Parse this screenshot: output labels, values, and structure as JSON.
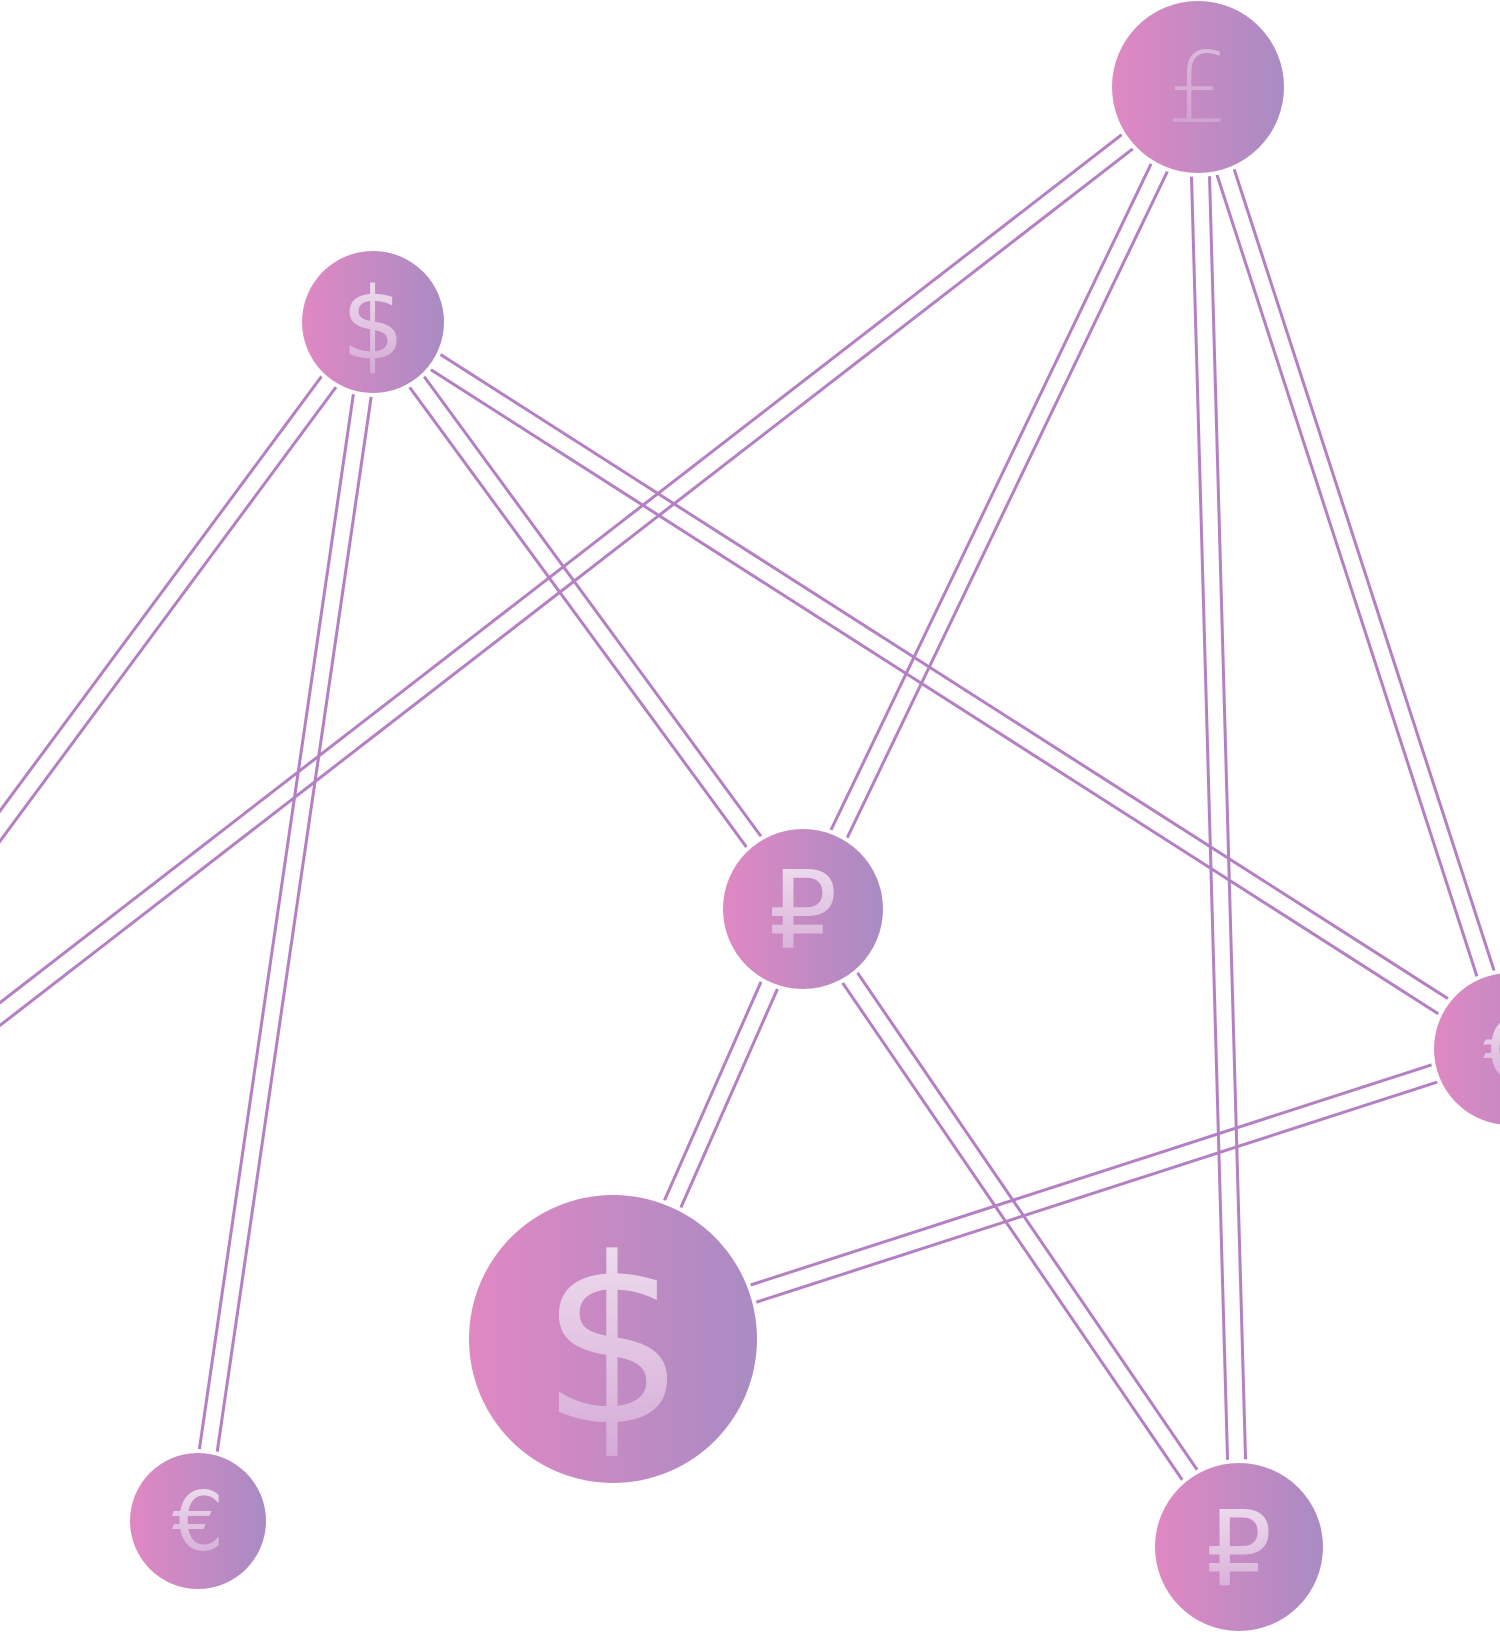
{
  "diagram": {
    "type": "currency-network",
    "colors": {
      "edge": "#b47fc3",
      "node_gradient_start": "#e088c3",
      "node_gradient_end": "#a98bc3",
      "symbol_light": "#f4e9f4",
      "symbol_dark": "#d5a8d6",
      "background": "#ffffff"
    },
    "nodes": [
      {
        "id": "pound-top",
        "symbol": "£",
        "currency": "pound",
        "icon": "pound-icon"
      },
      {
        "id": "dollar-upper-left",
        "symbol": "$",
        "currency": "dollar",
        "icon": "dollar-icon"
      },
      {
        "id": "ruble-center",
        "symbol": "₽",
        "currency": "ruble",
        "icon": "ruble-icon"
      },
      {
        "id": "dollar-large",
        "symbol": "$",
        "currency": "dollar",
        "icon": "dollar-icon"
      },
      {
        "id": "euro-bottom-left",
        "symbol": "€",
        "currency": "euro",
        "icon": "euro-icon"
      },
      {
        "id": "ruble-bottom-right",
        "symbol": "₽",
        "currency": "ruble",
        "icon": "ruble-icon"
      },
      {
        "id": "euro-right-edge",
        "symbol": "€",
        "currency": "euro",
        "icon": "euro-icon"
      }
    ],
    "edges": [
      {
        "from": "dollar-upper-left",
        "to": "offscreen-left-upper"
      },
      {
        "from": "dollar-upper-left",
        "to": "euro-bottom-left"
      },
      {
        "from": "dollar-upper-left",
        "to": "ruble-center"
      },
      {
        "from": "dollar-upper-left",
        "to": "euro-right-edge"
      },
      {
        "from": "pound-top",
        "to": "offscreen-left-lower"
      },
      {
        "from": "pound-top",
        "to": "ruble-center"
      },
      {
        "from": "pound-top",
        "to": "ruble-bottom-right"
      },
      {
        "from": "pound-top",
        "to": "euro-right-edge"
      },
      {
        "from": "ruble-center",
        "to": "dollar-large"
      },
      {
        "from": "ruble-center",
        "to": "ruble-bottom-right"
      },
      {
        "from": "dollar-large",
        "to": "euro-right-edge"
      }
    ]
  }
}
